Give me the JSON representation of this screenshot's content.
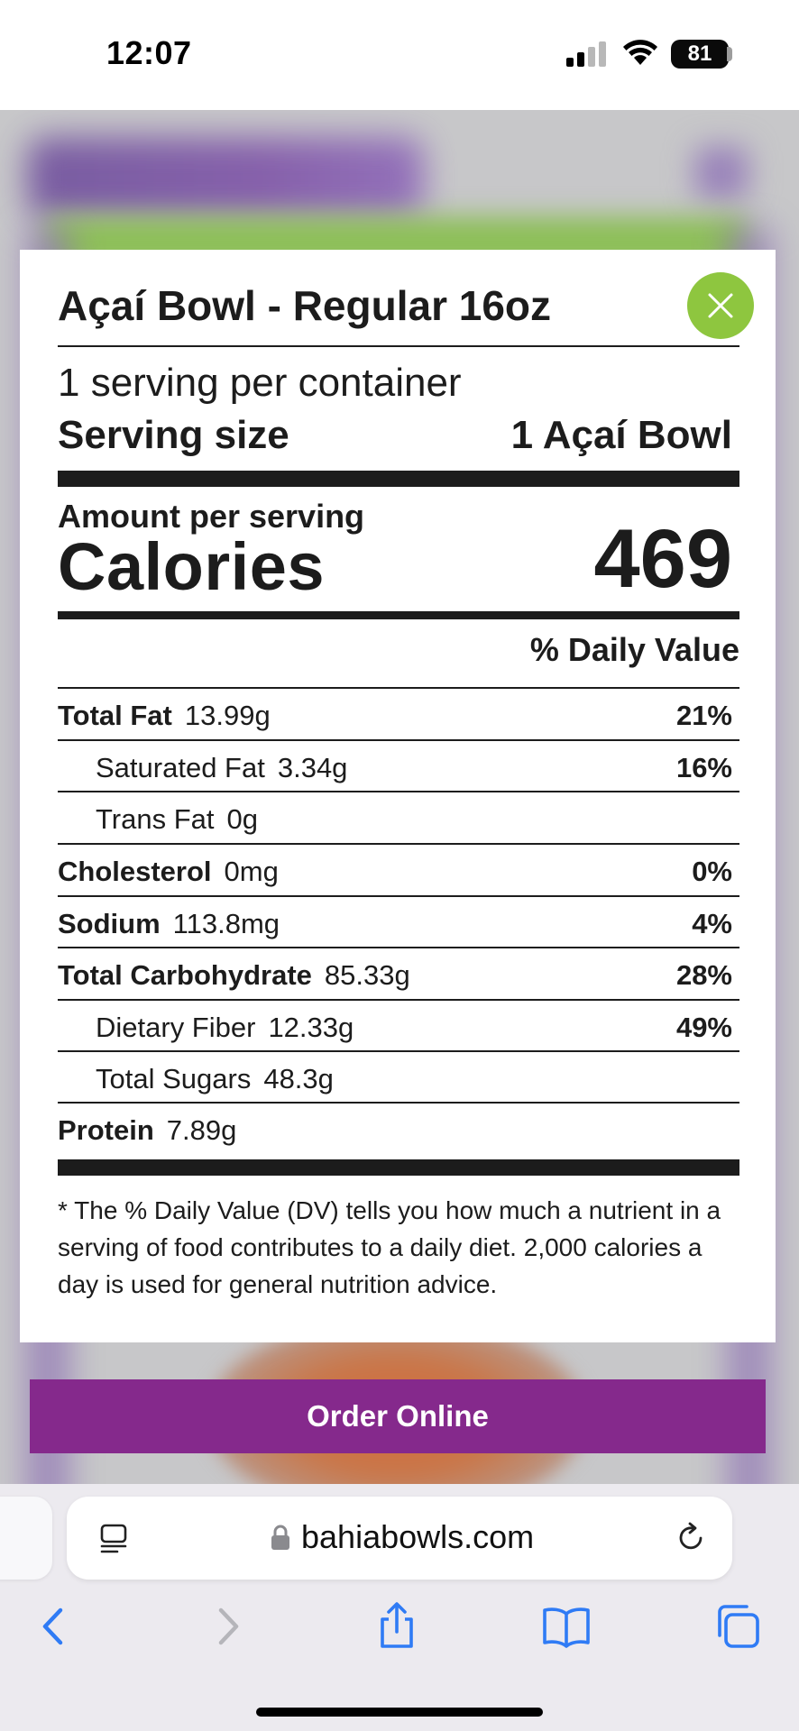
{
  "status_bar": {
    "time": "12:07",
    "battery": "81"
  },
  "nutrition": {
    "title": "Açaí Bowl - Regular 16oz",
    "servings_per_container": "1 serving per container",
    "serving_size_label": "Serving size",
    "serving_size_value": "1 Açaí Bowl",
    "amount_per_serving": "Amount per serving",
    "calories_label": "Calories",
    "calories_value": "469",
    "daily_value_header": "% Daily Value",
    "rows": [
      {
        "name": "Total Fat",
        "amount": "13.99g",
        "dv": "21%"
      },
      {
        "name": "Saturated Fat",
        "amount": "3.34g",
        "dv": "16%"
      },
      {
        "name": "Trans Fat",
        "amount": "0g",
        "dv": ""
      },
      {
        "name": "Cholesterol",
        "amount": "0mg",
        "dv": "0%"
      },
      {
        "name": "Sodium",
        "amount": "113.8mg",
        "dv": "4%"
      },
      {
        "name": "Total Carbohydrate",
        "amount": "85.33g",
        "dv": "28%"
      },
      {
        "name": "Dietary Fiber",
        "amount": "12.33g",
        "dv": "49%"
      },
      {
        "name": "Total Sugars",
        "amount": "48.3g",
        "dv": ""
      },
      {
        "name": "Protein",
        "amount": "7.89g",
        "dv": ""
      }
    ],
    "footnote": "* The % Daily Value (DV) tells you how much a nutrient in a serving of food contributes to a daily diet. 2,000 calories a day is used for general nutrition advice."
  },
  "order_button": "Order Online",
  "browser": {
    "url": "bahiabowls.com"
  },
  "icons": {
    "close": "close-icon",
    "reader": "reader-icon",
    "lock": "lock-icon",
    "reload": "reload-icon",
    "back": "back-icon",
    "forward": "forward-icon",
    "share": "share-icon",
    "bookmarks": "bookmarks-icon",
    "tabs": "tabs-icon"
  },
  "colors": {
    "close_button": "#8ec63f",
    "order_button": "#85298c",
    "safari_accent": "#2f7bf5"
  }
}
